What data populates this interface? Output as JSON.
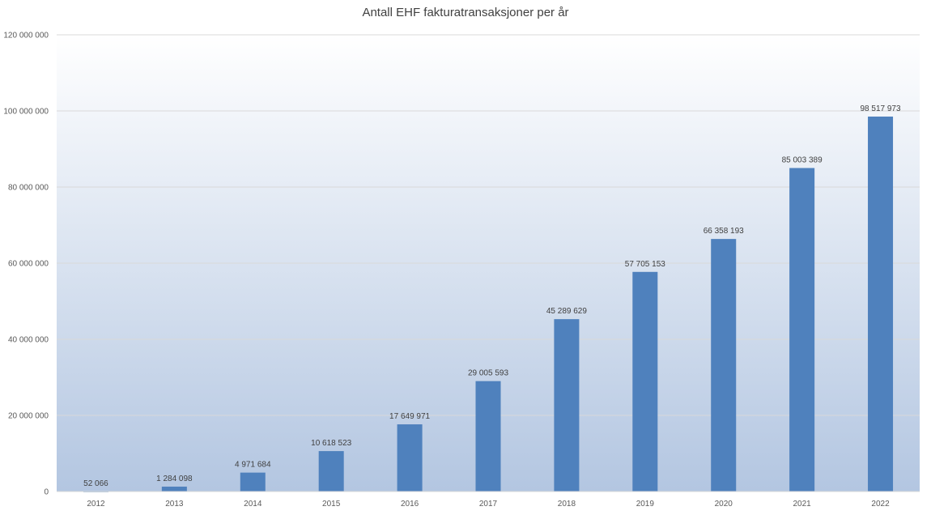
{
  "chart_data": {
    "type": "bar",
    "title": "Antall EHF fakturatransaksjoner per år",
    "xlabel": "",
    "ylabel": "",
    "categories": [
      "2012",
      "2013",
      "2014",
      "2015",
      "2016",
      "2017",
      "2018",
      "2019",
      "2020",
      "2021",
      "2022"
    ],
    "values": [
      52066,
      1284098,
      4971684,
      10618523,
      17649971,
      29005593,
      45289629,
      57705153,
      66358193,
      85003389,
      98517973
    ],
    "value_labels": [
      "52 066",
      "1 284 098",
      "4 971 684",
      "10 618 523",
      "17 649 971",
      "29 005 593",
      "45 289 629",
      "57 705 153",
      "66 358 193",
      "85 003 389",
      "98 517 973"
    ],
    "ylim": [
      0,
      120000000
    ],
    "yticks": [
      0,
      20000000,
      40000000,
      60000000,
      80000000,
      100000000,
      120000000
    ],
    "ytick_labels": [
      "0",
      "20 000 000",
      "40 000 000",
      "60 000 000",
      "80 000 000",
      "100 000 000",
      "120 000 000"
    ],
    "grid": true,
    "legend": "none",
    "colors": {
      "bar": "#4f81bd",
      "plot_bg_top": "#ffffff",
      "plot_bg_bottom": "#b3c6e1",
      "gridline": "#d9d9d9"
    }
  }
}
